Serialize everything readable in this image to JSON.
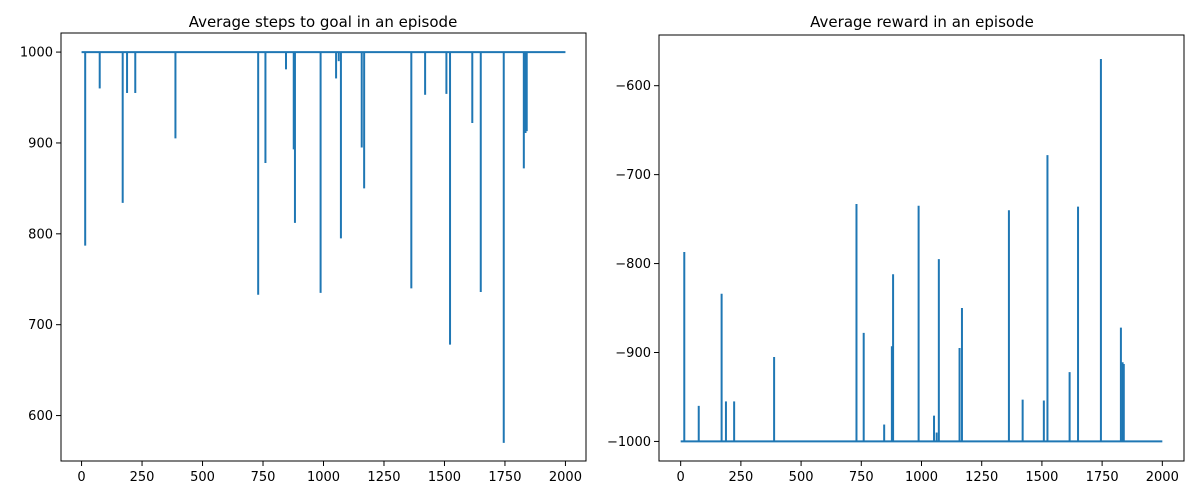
{
  "colors": {
    "series": "#1f77b4",
    "axes": "#000000",
    "background": "#ffffff"
  },
  "chart_data": [
    {
      "type": "line",
      "title": "Average steps to goal in an episode",
      "xlabel": "",
      "ylabel": "",
      "xlim": [
        -85,
        2085
      ],
      "ylim": [
        550,
        1021
      ],
      "x_ticks": [
        0,
        250,
        500,
        750,
        1000,
        1250,
        1500,
        1750,
        2000
      ],
      "y_ticks": [
        600,
        700,
        800,
        900,
        1000
      ],
      "grid": false,
      "baseline": 1000,
      "x_end": 2000,
      "spikes": [
        {
          "x": 15,
          "y": 787
        },
        {
          "x": 75,
          "y": 960
        },
        {
          "x": 170,
          "y": 834
        },
        {
          "x": 188,
          "y": 955
        },
        {
          "x": 222,
          "y": 955
        },
        {
          "x": 388,
          "y": 905
        },
        {
          "x": 460,
          "y": 999
        },
        {
          "x": 730,
          "y": 733
        },
        {
          "x": 760,
          "y": 878
        },
        {
          "x": 845,
          "y": 981
        },
        {
          "x": 877,
          "y": 893
        },
        {
          "x": 882,
          "y": 812
        },
        {
          "x": 988,
          "y": 735
        },
        {
          "x": 1052,
          "y": 971
        },
        {
          "x": 1063,
          "y": 990
        },
        {
          "x": 1072,
          "y": 795
        },
        {
          "x": 1158,
          "y": 895
        },
        {
          "x": 1168,
          "y": 850
        },
        {
          "x": 1363,
          "y": 740
        },
        {
          "x": 1420,
          "y": 953
        },
        {
          "x": 1508,
          "y": 954
        },
        {
          "x": 1523,
          "y": 678
        },
        {
          "x": 1615,
          "y": 922
        },
        {
          "x": 1650,
          "y": 736
        },
        {
          "x": 1745,
          "y": 570
        },
        {
          "x": 1828,
          "y": 872
        },
        {
          "x": 1835,
          "y": 911
        },
        {
          "x": 1840,
          "y": 913
        }
      ]
    },
    {
      "type": "line",
      "title": "Average reward in an episode",
      "xlabel": "",
      "ylabel": "",
      "xlim": [
        -90,
        2090
      ],
      "ylim": [
        -1022,
        -543
      ],
      "x_ticks": [
        0,
        250,
        500,
        750,
        1000,
        1250,
        1500,
        1750,
        2000
      ],
      "y_ticks": [
        -1000,
        -900,
        -800,
        -700,
        -600
      ],
      "grid": false,
      "baseline": -1000,
      "x_end": 2000,
      "spikes": [
        {
          "x": 15,
          "y": -787
        },
        {
          "x": 75,
          "y": -960
        },
        {
          "x": 170,
          "y": -834
        },
        {
          "x": 188,
          "y": -955
        },
        {
          "x": 222,
          "y": -955
        },
        {
          "x": 388,
          "y": -905
        },
        {
          "x": 460,
          "y": -999
        },
        {
          "x": 730,
          "y": -733
        },
        {
          "x": 760,
          "y": -878
        },
        {
          "x": 845,
          "y": -981
        },
        {
          "x": 877,
          "y": -893
        },
        {
          "x": 882,
          "y": -812
        },
        {
          "x": 988,
          "y": -735
        },
        {
          "x": 1052,
          "y": -971
        },
        {
          "x": 1063,
          "y": -990
        },
        {
          "x": 1072,
          "y": -795
        },
        {
          "x": 1158,
          "y": -895
        },
        {
          "x": 1168,
          "y": -850
        },
        {
          "x": 1363,
          "y": -740
        },
        {
          "x": 1420,
          "y": -953
        },
        {
          "x": 1508,
          "y": -954
        },
        {
          "x": 1523,
          "y": -678
        },
        {
          "x": 1615,
          "y": -922
        },
        {
          "x": 1650,
          "y": -736
        },
        {
          "x": 1745,
          "y": -570
        },
        {
          "x": 1828,
          "y": -872
        },
        {
          "x": 1835,
          "y": -911
        },
        {
          "x": 1840,
          "y": -913
        }
      ]
    }
  ]
}
